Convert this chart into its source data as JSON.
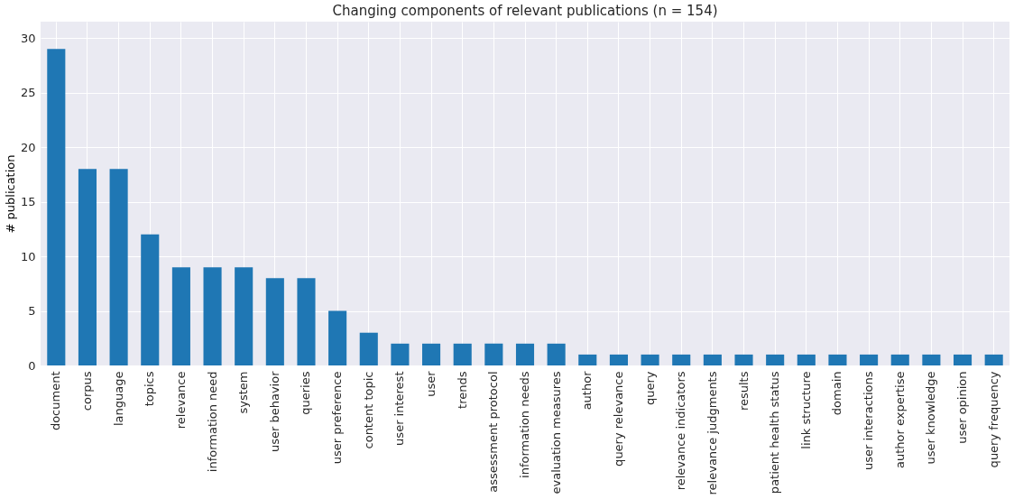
{
  "chart_data": {
    "type": "bar",
    "title": "Changing components of relevant publications     (n = 154)",
    "ylabel": "# publication",
    "categories": [
      "document",
      "corpus",
      "language",
      "topics",
      "relevance",
      "information need",
      "system",
      "user behavior",
      "queries",
      "user preference",
      "content topic",
      "user interest",
      "user",
      "trends",
      "assessment protocol",
      "information needs",
      "evaluation measures",
      "author",
      "query relevance",
      "query",
      "relevance indicators",
      "relevance judgments",
      "results",
      "patient health status",
      "link structure",
      "domain",
      "user interactions",
      "author expertise",
      "user knowledge",
      "user opinion",
      "query frequency"
    ],
    "values": [
      29,
      18,
      18,
      12,
      9,
      9,
      9,
      8,
      8,
      5,
      3,
      2,
      2,
      2,
      2,
      2,
      2,
      1,
      1,
      1,
      1,
      1,
      1,
      1,
      1,
      1,
      1,
      1,
      1,
      1,
      1
    ],
    "color": "#1f77b4",
    "ylim": [
      0,
      31.5
    ],
    "yticks": [
      0,
      5,
      10,
      15,
      20,
      25,
      30
    ],
    "grid": true
  }
}
